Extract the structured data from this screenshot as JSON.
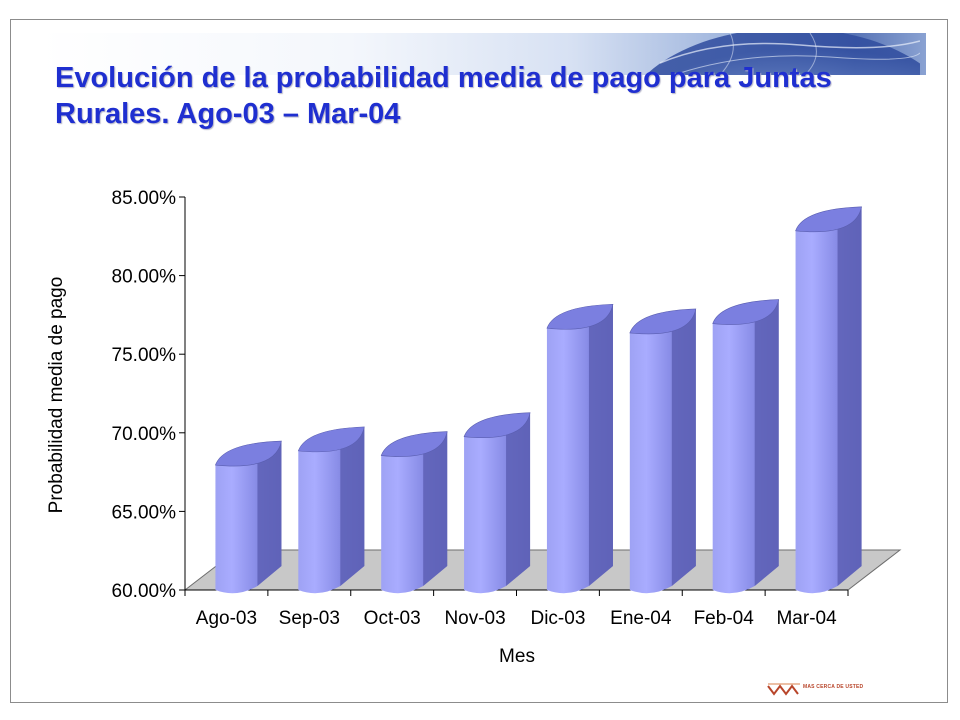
{
  "slide": {
    "title": "Evolución de la probabilidad media de pago para Juntas Rurales. Ago-03 – Mar-04",
    "logo_text": "MAS CERCA DE USTED"
  },
  "colors": {
    "title": "#1f2fd0",
    "bar_light": "#a9acff",
    "bar_mid": "#8a8ee8",
    "bar_dark": "#5f63b8",
    "floor": "#c8c8c8"
  },
  "chart_data": {
    "type": "bar",
    "title": "",
    "xlabel": "Mes",
    "ylabel": "Probabilidad media de pago",
    "categories": [
      "Ago-03",
      "Sep-03",
      "Oct-03",
      "Nov-03",
      "Dic-03",
      "Ene-04",
      "Feb-04",
      "Mar-04"
    ],
    "values": [
      0.6795,
      0.6885,
      0.6855,
      0.6975,
      0.7665,
      0.7635,
      0.7695,
      0.8285
    ],
    "ylim": [
      0.6,
      0.85
    ],
    "yticks": [
      "60.00%",
      "65.00%",
      "70.00%",
      "75.00%",
      "80.00%",
      "85.00%"
    ],
    "ytick_values": [
      0.6,
      0.65,
      0.7,
      0.75,
      0.8,
      0.85
    ],
    "style": "3d-cylinder",
    "grid": false,
    "legend": "none"
  }
}
